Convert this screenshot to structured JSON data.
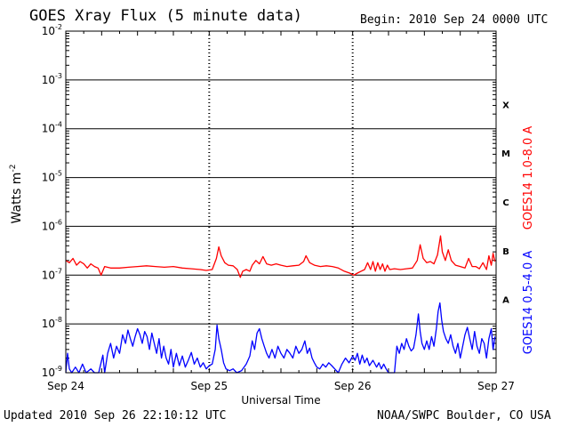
{
  "header": {
    "title": "GOES Xray Flux (5 minute data)",
    "begin": "Begin:  2010 Sep 24 0000 UTC"
  },
  "footer": {
    "updated": "Updated 2010 Sep 26 22:10:12 UTC",
    "credit": "NOAA/SWPC Boulder, CO USA"
  },
  "colors": {
    "long_channel": "#ff0000",
    "short_channel": "#0000ff",
    "frame": "#000000"
  },
  "chart_data": {
    "type": "line",
    "title": "GOES Xray Flux (5 minute data)",
    "xlabel": "Universal Time",
    "ylabel": "Watts m-2",
    "ylabel_base": "Watts m",
    "ylabel_exp": "-2",
    "yscale": "log",
    "ylim": [
      1e-09,
      0.01
    ],
    "xlim": [
      0,
      72
    ],
    "x_unit": "hours since 2010 Sep 24 0000 UTC",
    "grid": true,
    "x_ticks": [
      {
        "x": 0,
        "label": "Sep 24"
      },
      {
        "x": 24,
        "label": "Sep 25"
      },
      {
        "x": 48,
        "label": "Sep 26"
      },
      {
        "x": 72,
        "label": "Sep 27"
      }
    ],
    "y_ticks": [
      {
        "exp": -9,
        "label": "10",
        "sup": "-9"
      },
      {
        "exp": -8,
        "label": "10",
        "sup": "-8"
      },
      {
        "exp": -7,
        "label": "10",
        "sup": "-7"
      },
      {
        "exp": -6,
        "label": "10",
        "sup": "-6"
      },
      {
        "exp": -5,
        "label": "10",
        "sup": "-5"
      },
      {
        "exp": -4,
        "label": "10",
        "sup": "-4"
      },
      {
        "exp": -3,
        "label": "10",
        "sup": "-3"
      },
      {
        "exp": -2,
        "label": "10",
        "sup": "-2"
      }
    ],
    "flare_classes": [
      {
        "label": "A",
        "exp": -8
      },
      {
        "label": "B",
        "exp": -7
      },
      {
        "label": "C",
        "exp": -6
      },
      {
        "label": "M",
        "exp": -5
      },
      {
        "label": "X",
        "exp": -4
      }
    ],
    "series": [
      {
        "name": "GOES14 1.0-8.0 A",
        "color": "#ff0000",
        "points": [
          [
            0,
            2e-07
          ],
          [
            0.6,
            1.8e-07
          ],
          [
            1.2,
            2.2e-07
          ],
          [
            1.8,
            1.6e-07
          ],
          [
            2.4,
            1.9e-07
          ],
          [
            3.0,
            1.7e-07
          ],
          [
            3.6,
            1.4e-07
          ],
          [
            4.2,
            1.7e-07
          ],
          [
            4.8,
            1.5e-07
          ],
          [
            5.4,
            1.4e-07
          ],
          [
            5.9,
            1e-07
          ],
          [
            6.5,
            1.5e-07
          ],
          [
            7.5,
            1.4e-07
          ],
          [
            9.0,
            1.4e-07
          ],
          [
            10.5,
            1.45e-07
          ],
          [
            12.0,
            1.5e-07
          ],
          [
            13.5,
            1.55e-07
          ],
          [
            15.0,
            1.5e-07
          ],
          [
            16.5,
            1.45e-07
          ],
          [
            18.0,
            1.5e-07
          ],
          [
            19.5,
            1.4e-07
          ],
          [
            21.0,
            1.35e-07
          ],
          [
            22.5,
            1.3e-07
          ],
          [
            23.5,
            1.25e-07
          ],
          [
            24.5,
            1.3e-07
          ],
          [
            25.2,
            2.2e-07
          ],
          [
            25.6,
            3.8e-07
          ],
          [
            26.0,
            2.5e-07
          ],
          [
            26.6,
            1.8e-07
          ],
          [
            27.2,
            1.6e-07
          ],
          [
            28.0,
            1.55e-07
          ],
          [
            28.7,
            1.3e-07
          ],
          [
            29.2,
            9e-08
          ],
          [
            29.6,
            1.2e-07
          ],
          [
            30.2,
            1.3e-07
          ],
          [
            30.8,
            1.2e-07
          ],
          [
            31.2,
            1.6e-07
          ],
          [
            31.8,
            2e-07
          ],
          [
            32.4,
            1.7e-07
          ],
          [
            33.0,
            2.4e-07
          ],
          [
            33.6,
            1.7e-07
          ],
          [
            34.4,
            1.6e-07
          ],
          [
            35.2,
            1.7e-07
          ],
          [
            36.0,
            1.6e-07
          ],
          [
            37.0,
            1.5e-07
          ],
          [
            38.0,
            1.55e-07
          ],
          [
            39.0,
            1.6e-07
          ],
          [
            39.8,
            1.9e-07
          ],
          [
            40.2,
            2.5e-07
          ],
          [
            40.8,
            1.8e-07
          ],
          [
            41.6,
            1.6e-07
          ],
          [
            42.6,
            1.5e-07
          ],
          [
            43.6,
            1.55e-07
          ],
          [
            44.6,
            1.5e-07
          ],
          [
            45.6,
            1.4e-07
          ],
          [
            46.6,
            1.2e-07
          ],
          [
            47.5,
            1.1e-07
          ],
          [
            48.2,
            1e-07
          ],
          [
            48.8,
            1.1e-07
          ],
          [
            49.4,
            1.2e-07
          ],
          [
            50.0,
            1.3e-07
          ],
          [
            50.5,
            1.8e-07
          ],
          [
            51.0,
            1.3e-07
          ],
          [
            51.4,
            1.9e-07
          ],
          [
            51.8,
            1.2e-07
          ],
          [
            52.2,
            1.8e-07
          ],
          [
            52.6,
            1.3e-07
          ],
          [
            53.0,
            1.7e-07
          ],
          [
            53.4,
            1.2e-07
          ],
          [
            53.8,
            1.6e-07
          ],
          [
            54.2,
            1.3e-07
          ],
          [
            55.0,
            1.35e-07
          ],
          [
            56.0,
            1.3e-07
          ],
          [
            57.0,
            1.35e-07
          ],
          [
            58.0,
            1.4e-07
          ],
          [
            58.8,
            2e-07
          ],
          [
            59.3,
            4.2e-07
          ],
          [
            59.8,
            2.2e-07
          ],
          [
            60.4,
            1.8e-07
          ],
          [
            61.0,
            1.9e-07
          ],
          [
            61.6,
            1.7e-07
          ],
          [
            62.2,
            2.6e-07
          ],
          [
            62.7,
            6.4e-07
          ],
          [
            63.0,
            3e-07
          ],
          [
            63.5,
            2e-07
          ],
          [
            64.0,
            3.3e-07
          ],
          [
            64.5,
            2e-07
          ],
          [
            65.2,
            1.6e-07
          ],
          [
            66.0,
            1.5e-07
          ],
          [
            66.8,
            1.4e-07
          ],
          [
            67.4,
            2.2e-07
          ],
          [
            68.0,
            1.5e-07
          ],
          [
            68.6,
            1.5e-07
          ],
          [
            69.2,
            1.35e-07
          ],
          [
            69.8,
            1.8e-07
          ],
          [
            70.4,
            1.3e-07
          ],
          [
            70.8,
            2.5e-07
          ],
          [
            71.2,
            1.6e-07
          ],
          [
            71.5,
            2.8e-07
          ],
          [
            71.8,
            1.9e-07
          ]
        ]
      },
      {
        "name": "GOES14 0.5-4.0 A",
        "color": "#0000ff",
        "points": [
          [
            0,
            1e-09
          ],
          [
            0.3,
            2.5e-09
          ],
          [
            0.6,
            1.2e-09
          ],
          [
            1.0,
            1e-09
          ],
          [
            1.6,
            1.3e-09
          ],
          [
            2.2,
            1e-09
          ],
          [
            2.8,
            1.5e-09
          ],
          [
            3.4,
            1e-09
          ],
          [
            4.2,
            1.2e-09
          ],
          [
            4.8,
            1e-09
          ],
          [
            5.5,
            1e-09
          ],
          [
            6.2,
            2.3e-09
          ],
          [
            6.5,
            1e-09
          ],
          [
            7.0,
            2.5e-09
          ],
          [
            7.5,
            4e-09
          ],
          [
            8.0,
            2e-09
          ],
          [
            8.5,
            3.5e-09
          ],
          [
            9.0,
            2.5e-09
          ],
          [
            9.5,
            6e-09
          ],
          [
            10.0,
            4e-09
          ],
          [
            10.4,
            7.5e-09
          ],
          [
            10.8,
            5e-09
          ],
          [
            11.2,
            3.5e-09
          ],
          [
            11.6,
            5.5e-09
          ],
          [
            12.0,
            8e-09
          ],
          [
            12.4,
            6e-09
          ],
          [
            12.8,
            4e-09
          ],
          [
            13.2,
            7e-09
          ],
          [
            13.6,
            5.5e-09
          ],
          [
            14.0,
            3e-09
          ],
          [
            14.4,
            6.5e-09
          ],
          [
            14.8,
            4e-09
          ],
          [
            15.2,
            2.5e-09
          ],
          [
            15.6,
            5e-09
          ],
          [
            16.0,
            2e-09
          ],
          [
            16.4,
            3.5e-09
          ],
          [
            16.8,
            2e-09
          ],
          [
            17.2,
            1.5e-09
          ],
          [
            17.6,
            3e-09
          ],
          [
            18.0,
            1.3e-09
          ],
          [
            18.5,
            2.5e-09
          ],
          [
            19.0,
            1.4e-09
          ],
          [
            19.5,
            2.2e-09
          ],
          [
            20.0,
            1.3e-09
          ],
          [
            20.5,
            1.8e-09
          ],
          [
            21.0,
            2.6e-09
          ],
          [
            21.5,
            1.5e-09
          ],
          [
            22.0,
            2e-09
          ],
          [
            22.5,
            1.3e-09
          ],
          [
            23.0,
            1.6e-09
          ],
          [
            23.5,
            1.2e-09
          ],
          [
            24.0,
            1.4e-09
          ],
          [
            24.5,
            1.5e-09
          ],
          [
            25.0,
            3e-09
          ],
          [
            25.3,
            9.5e-09
          ],
          [
            25.6,
            5e-09
          ],
          [
            26.0,
            3e-09
          ],
          [
            26.4,
            1.6e-09
          ],
          [
            26.8,
            1.2e-09
          ],
          [
            27.4,
            1.1e-09
          ],
          [
            28.0,
            1.2e-09
          ],
          [
            28.6,
            1e-09
          ],
          [
            29.4,
            1.1e-09
          ],
          [
            30.2,
            1.5e-09
          ],
          [
            30.8,
            2.2e-09
          ],
          [
            31.2,
            4.5e-09
          ],
          [
            31.6,
            3e-09
          ],
          [
            32.0,
            6.5e-09
          ],
          [
            32.4,
            8e-09
          ],
          [
            32.8,
            5e-09
          ],
          [
            33.2,
            3.5e-09
          ],
          [
            33.6,
            2.5e-09
          ],
          [
            34.0,
            2e-09
          ],
          [
            34.5,
            3e-09
          ],
          [
            35.0,
            2e-09
          ],
          [
            35.5,
            3.5e-09
          ],
          [
            36.0,
            2.5e-09
          ],
          [
            36.5,
            2e-09
          ],
          [
            37.0,
            3e-09
          ],
          [
            37.5,
            2.5e-09
          ],
          [
            38.0,
            2e-09
          ],
          [
            38.5,
            3.5e-09
          ],
          [
            39.0,
            2.5e-09
          ],
          [
            39.5,
            3e-09
          ],
          [
            40.0,
            4.5e-09
          ],
          [
            40.4,
            2.5e-09
          ],
          [
            40.8,
            3.2e-09
          ],
          [
            41.2,
            2e-09
          ],
          [
            41.6,
            1.6e-09
          ],
          [
            42.0,
            1.3e-09
          ],
          [
            42.5,
            1.2e-09
          ],
          [
            43.0,
            1.5e-09
          ],
          [
            43.5,
            1.3e-09
          ],
          [
            44.0,
            1.6e-09
          ],
          [
            44.5,
            1.4e-09
          ],
          [
            45.0,
            1.2e-09
          ],
          [
            45.6,
            1e-09
          ],
          [
            46.2,
            1.5e-09
          ],
          [
            46.8,
            2e-09
          ],
          [
            47.4,
            1.6e-09
          ],
          [
            48.0,
            2.2e-09
          ],
          [
            48.4,
            1.8e-09
          ],
          [
            48.8,
            2.5e-09
          ],
          [
            49.2,
            1.5e-09
          ],
          [
            49.6,
            2.3e-09
          ],
          [
            50.0,
            1.6e-09
          ],
          [
            50.4,
            2e-09
          ],
          [
            50.8,
            1.4e-09
          ],
          [
            51.4,
            1.8e-09
          ],
          [
            52.0,
            1.3e-09
          ],
          [
            52.4,
            1.6e-09
          ],
          [
            52.8,
            1.2e-09
          ],
          [
            53.2,
            1.5e-09
          ],
          [
            53.6,
            1.2e-09
          ],
          [
            54.0,
            1e-09
          ],
          [
            55.0,
            1e-09
          ],
          [
            55.4,
            3.5e-09
          ],
          [
            55.8,
            2.5e-09
          ],
          [
            56.2,
            4e-09
          ],
          [
            56.6,
            3e-09
          ],
          [
            57.0,
            5e-09
          ],
          [
            57.4,
            3.5e-09
          ],
          [
            57.8,
            2.8e-09
          ],
          [
            58.2,
            3.2e-09
          ],
          [
            58.6,
            6e-09
          ],
          [
            59.0,
            1.6e-08
          ],
          [
            59.3,
            7e-09
          ],
          [
            59.6,
            4e-09
          ],
          [
            60.0,
            3e-09
          ],
          [
            60.4,
            4.5e-09
          ],
          [
            60.8,
            3e-09
          ],
          [
            61.2,
            5.5e-09
          ],
          [
            61.6,
            3.5e-09
          ],
          [
            62.0,
            8e-09
          ],
          [
            62.3,
            1.8e-08
          ],
          [
            62.6,
            2.7e-08
          ],
          [
            62.9,
            1.2e-08
          ],
          [
            63.2,
            7e-09
          ],
          [
            63.6,
            5e-09
          ],
          [
            64.0,
            4e-09
          ],
          [
            64.4,
            6e-09
          ],
          [
            64.8,
            3.5e-09
          ],
          [
            65.2,
            2.5e-09
          ],
          [
            65.6,
            4e-09
          ],
          [
            66.0,
            2e-09
          ],
          [
            66.4,
            3.5e-09
          ],
          [
            66.8,
            6e-09
          ],
          [
            67.2,
            8.5e-09
          ],
          [
            67.6,
            5e-09
          ],
          [
            68.0,
            3e-09
          ],
          [
            68.4,
            7e-09
          ],
          [
            68.8,
            3.5e-09
          ],
          [
            69.2,
            2.5e-09
          ],
          [
            69.6,
            5e-09
          ],
          [
            70.0,
            4e-09
          ],
          [
            70.4,
            2e-09
          ],
          [
            70.8,
            5e-09
          ],
          [
            71.2,
            8e-09
          ],
          [
            71.5,
            3e-09
          ],
          [
            71.8,
            5.5e-09
          ]
        ]
      }
    ]
  }
}
